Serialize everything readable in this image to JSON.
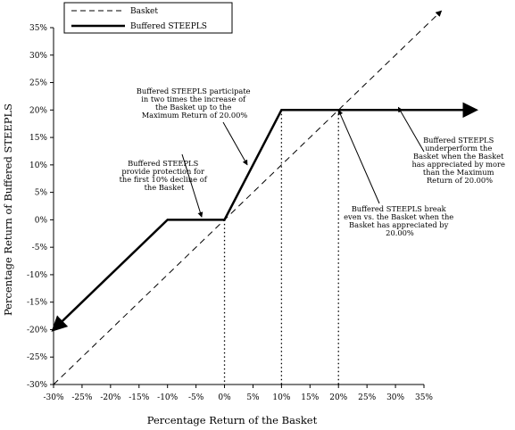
{
  "chart_data": {
    "type": "line",
    "title": "",
    "xlabel": "Percentage Return of the Basket",
    "ylabel": "Percentage Return of Buffered STEEPLS",
    "xlim": [
      -30,
      35
    ],
    "ylim": [
      -30,
      35
    ],
    "x_ticks": [
      "-30%",
      "-25%",
      "-20%",
      "-15%",
      "-10%",
      "-5%",
      "0%",
      "5%",
      "10%",
      "15%",
      "20%",
      "25%",
      "30%",
      "35%"
    ],
    "y_ticks": [
      "35%",
      "30%",
      "25%",
      "20%",
      "15%",
      "10%",
      "5%",
      "0%",
      "-5%",
      "-10%",
      "-15%",
      "-20%",
      "-25%",
      "-30%"
    ],
    "grid": false,
    "legend_position": "top-left",
    "series": [
      {
        "name": "Basket",
        "style": "dashed",
        "x": [
          -30,
          38
        ],
        "y": [
          -30,
          38
        ]
      },
      {
        "name": "Buffered STEEPLS",
        "style": "solid",
        "x": [
          -30,
          -10,
          0,
          10,
          44
        ],
        "y": [
          -20,
          0,
          0,
          20,
          20
        ]
      }
    ],
    "reference_lines_x": [
      0,
      10,
      20
    ],
    "annotations": [
      {
        "lines": [
          "Buffered STEEPLS participate",
          "in two times the increase of",
          "the Basket up to the",
          "Maximum Return of 20.00%"
        ],
        "points_to": [
          4,
          10
        ]
      },
      {
        "lines": [
          "Buffered STEEPLS",
          "provide protection for",
          "the first 10% decline of",
          "the Basket"
        ],
        "points_to": [
          -4,
          0.5
        ]
      },
      {
        "lines": [
          "Buffered STEEPLS",
          "underperform the",
          "Basket when the Basket",
          "has appreciated by more",
          "than the Maximum",
          "Return of 20.00%"
        ],
        "points_to": [
          30.5,
          20.5
        ]
      },
      {
        "lines": [
          "Buffered STEEPLS break",
          "even vs. the Basket when the",
          "Basket has appreciated by",
          "20.00%"
        ],
        "points_to": [
          20,
          20
        ]
      }
    ]
  }
}
